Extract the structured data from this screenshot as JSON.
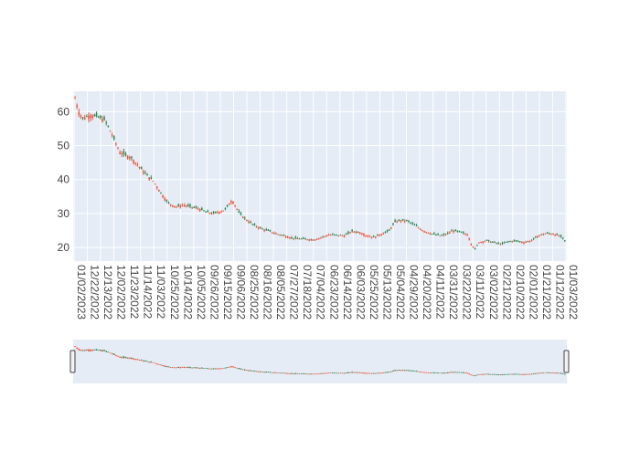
{
  "chart_data": {
    "type": "candlestick",
    "title": "",
    "xlabel": "",
    "ylabel": "",
    "x_reversed": true,
    "ylim": [
      16,
      66
    ],
    "y_ticks": [
      20,
      30,
      40,
      50,
      60
    ],
    "grid": true,
    "colors": {
      "increasing": "#ef553b",
      "decreasing": "#2e8b57",
      "plot_bg": "#e5ecf6",
      "grid": "#ffffff",
      "rangeslider_bg": "#e5ecf6",
      "handle_fill": "#f2f2f2",
      "handle_border": "#444444"
    },
    "x_tick_labels": [
      "01/02/2023",
      "12/22/2022",
      "12/13/2022",
      "12/02/2022",
      "11/23/2022",
      "11/14/2022",
      "11/03/2022",
      "10/25/2022",
      "10/14/2022",
      "10/05/2022",
      "09/26/2022",
      "09/15/2022",
      "09/06/2022",
      "08/25/2022",
      "08/16/2022",
      "08/05/2022",
      "07/27/2022",
      "07/18/2022",
      "07/04/2022",
      "06/23/2022",
      "06/14/2022",
      "06/03/2022",
      "05/25/2022",
      "05/13/2022",
      "05/04/2022",
      "04/29/2022",
      "04/20/2022",
      "04/11/2022",
      "03/31/2022",
      "03/22/2022",
      "03/11/2022",
      "03/02/2022",
      "02/21/2022",
      "02/10/2022",
      "02/01/2022",
      "01/21/2022",
      "01/12/2022",
      "01/03/2022"
    ],
    "close_profile": [
      [
        0,
        64
      ],
      [
        0.01,
        60
      ],
      [
        0.02,
        58
      ],
      [
        0.04,
        59
      ],
      [
        0.06,
        58.5
      ],
      [
        0.08,
        57.5
      ],
      [
        0.1,
        53
      ],
      [
        0.12,
        48
      ],
      [
        0.15,
        46.5
      ],
      [
        0.17,
        44
      ],
      [
        0.19,
        41.5
      ],
      [
        0.21,
        39.5
      ],
      [
        0.23,
        36
      ],
      [
        0.25,
        33
      ],
      [
        0.27,
        32
      ],
      [
        0.29,
        32.5
      ],
      [
        0.31,
        32
      ],
      [
        0.33,
        31.5
      ],
      [
        0.35,
        30.5
      ],
      [
        0.37,
        30
      ],
      [
        0.4,
        31
      ],
      [
        0.42,
        34
      ],
      [
        0.44,
        30
      ],
      [
        0.46,
        28
      ],
      [
        0.48,
        26.5
      ],
      [
        0.5,
        25.5
      ],
      [
        0.52,
        24.8
      ],
      [
        0.54,
        24
      ],
      [
        0.56,
        23.5
      ],
      [
        0.58,
        22.8
      ],
      [
        0.61,
        22.5
      ],
      [
        0.64,
        22.3
      ],
      [
        0.66,
        23
      ],
      [
        0.68,
        23.8
      ],
      [
        0.7,
        23.6
      ],
      [
        0.72,
        23.5
      ],
      [
        0.74,
        24.8
      ],
      [
        0.76,
        24.5
      ],
      [
        0.78,
        23.5
      ],
      [
        0.8,
        23
      ],
      [
        0.82,
        24
      ],
      [
        0.84,
        25
      ],
      [
        0.855,
        27.5
      ],
      [
        0.87,
        28
      ],
      [
        0.89,
        27.8
      ],
      [
        0.91,
        26.5
      ],
      [
        0.93,
        25
      ],
      [
        0.95,
        24.2
      ],
      [
        0.965,
        23.8
      ],
      [
        0.98,
        23.5
      ],
      [
        0.995,
        24
      ],
      [
        1.01,
        25
      ],
      [
        1.03,
        24.5
      ],
      [
        1.05,
        23.8
      ],
      [
        1.06,
        21
      ],
      [
        1.07,
        19.5
      ],
      [
        1.08,
        21.5
      ],
      [
        1.1,
        22
      ],
      [
        1.12,
        21.5
      ],
      [
        1.14,
        21
      ],
      [
        1.16,
        21.8
      ],
      [
        1.18,
        22
      ],
      [
        1.2,
        21.5
      ],
      [
        1.22,
        22
      ],
      [
        1.24,
        23.5
      ],
      [
        1.26,
        24.2
      ],
      [
        1.28,
        24
      ],
      [
        1.3,
        23.2
      ],
      [
        1.31,
        22
      ]
    ]
  }
}
